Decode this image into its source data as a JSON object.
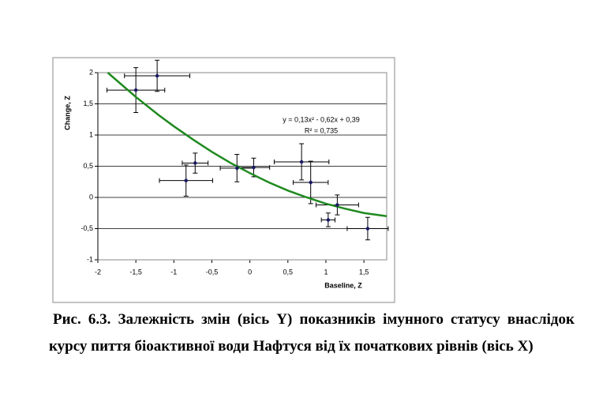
{
  "chart_data": {
    "type": "scatter",
    "x_label": "Baseline, Z",
    "y_label": "Change, Z",
    "x": [
      -1.5,
      -1.22,
      -0.72,
      -0.84,
      -0.17,
      0.05,
      0.68,
      0.8,
      1.15,
      1.03,
      1.55
    ],
    "xerr": [
      0.38,
      0.43,
      0.17,
      0.35,
      0.22,
      0.21,
      0.36,
      0.23,
      0.28,
      0.09,
      0.27
    ],
    "series": [
      {
        "color": "#1a1a60",
        "values": [
          1.72,
          1.95,
          0.55,
          0.27,
          0.47,
          0.48,
          0.57,
          0.24,
          -0.12,
          -0.36,
          -0.5
        ],
        "yerr": [
          0.36,
          0.25,
          0.16,
          0.25,
          0.22,
          0.15,
          0.29,
          0.34,
          0.16,
          0.11,
          0.18
        ]
      }
    ],
    "trendline": {
      "color": "#1f8a1f",
      "x": [
        -1.87,
        -1.5,
        -1.2,
        -1,
        -0.75,
        -0.5,
        -0.25,
        0,
        0.25,
        0.5,
        0.75,
        1,
        1.25,
        1.5,
        1.8
      ],
      "values": [
        2.0,
        1.61,
        1.32,
        1.14,
        0.93,
        0.73,
        0.55,
        0.39,
        0.24,
        0.11,
        0.0,
        -0.1,
        -0.18,
        -0.25,
        -0.3
      ],
      "equation": "y = 0,13x² - 0,62x + 0,39",
      "r2": "R² = 0,735"
    },
    "xlim": [
      -2,
      1.8
    ],
    "xticks": [
      -2,
      {
        "value": -1.5,
        "label": "-1,5"
      },
      -1,
      {
        "value": -0.5,
        "label": "-0,5"
      },
      0,
      {
        "value": 0.5,
        "label": "0,5"
      },
      1,
      {
        "value": 1.5,
        "label": "1,5"
      }
    ],
    "ylim": [
      -1,
      2
    ],
    "yticks": [
      -1,
      {
        "value": -0.5,
        "label": "-0,5"
      },
      0,
      {
        "value": 0.5,
        "label": "0,5"
      },
      1,
      {
        "value": 1.5,
        "label": "1,5"
      },
      2
    ],
    "grid": true
  },
  "caption": "Рис. 6.3. Залежність змін (вісь Y) показників імунного статусу внаслідок курсу пиття біоактивної води Нафтуся від їх початкових рівнів (вісь X)"
}
